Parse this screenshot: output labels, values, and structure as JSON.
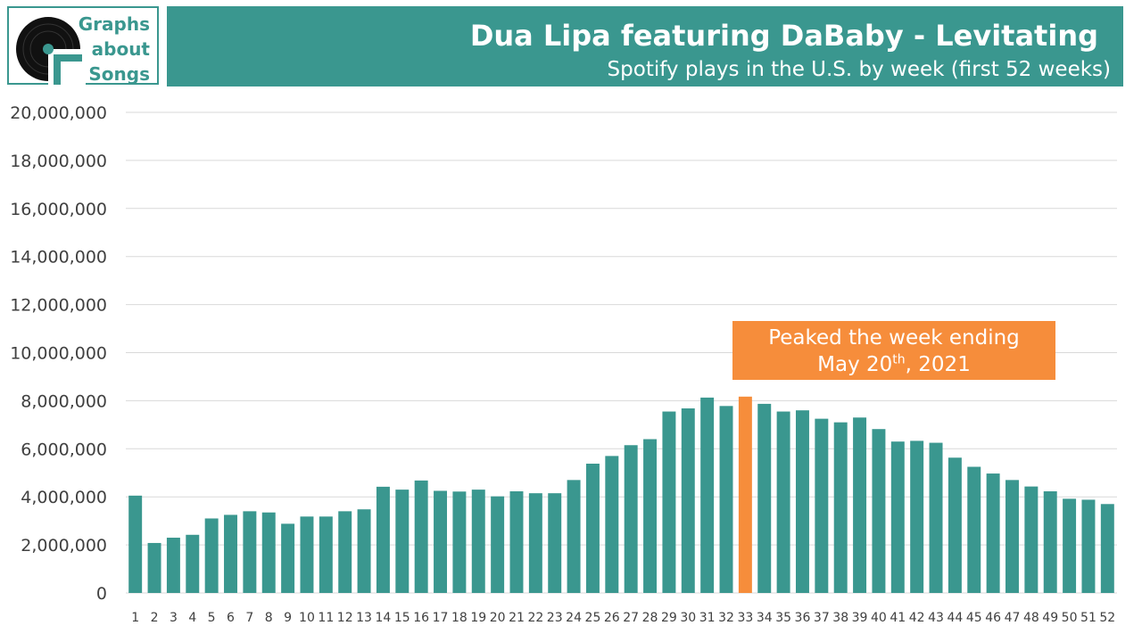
{
  "logo": {
    "line1": "Graphs",
    "line2": "about",
    "line3": "Songs",
    "disc_icon": "vinyl-record-icon"
  },
  "header": {
    "title": "Dua Lipa featuring DaBaby - Levitating",
    "subtitle": "Spotify plays in the U.S. by week (first 52 weeks)"
  },
  "annotation": {
    "line1": "Peaked the week ending",
    "month_day": "May 20",
    "ordinal": "th",
    "year": ", 2021"
  },
  "colors": {
    "bar": "#3a978f",
    "peak": "#f68d3b",
    "grid": "#d9d9d9",
    "axis_text": "#404040"
  },
  "chart_data": {
    "type": "bar",
    "title": "Dua Lipa featuring DaBaby - Levitating",
    "subtitle": "Spotify plays in the U.S. by week (first 52 weeks)",
    "xlabel": "",
    "ylabel": "",
    "ylim": [
      0,
      20000000
    ],
    "yticks": [
      "0",
      "2,000,000",
      "4,000,000",
      "6,000,000",
      "8,000,000",
      "10,000,000",
      "12,000,000",
      "14,000,000",
      "16,000,000",
      "18,000,000",
      "20,000,000"
    ],
    "categories": [
      "1",
      "2",
      "3",
      "4",
      "5",
      "6",
      "7",
      "8",
      "9",
      "10",
      "11",
      "12",
      "13",
      "14",
      "15",
      "16",
      "17",
      "18",
      "19",
      "20",
      "21",
      "22",
      "23",
      "24",
      "25",
      "26",
      "27",
      "28",
      "29",
      "30",
      "31",
      "32",
      "33",
      "34",
      "35",
      "36",
      "37",
      "38",
      "39",
      "40",
      "41",
      "42",
      "43",
      "44",
      "45",
      "46",
      "47",
      "48",
      "49",
      "50",
      "51",
      "52"
    ],
    "values": [
      4050000,
      2080000,
      2300000,
      2420000,
      3100000,
      3250000,
      3400000,
      3350000,
      2880000,
      3180000,
      3180000,
      3400000,
      3480000,
      4420000,
      4300000,
      4680000,
      4250000,
      4220000,
      4300000,
      4020000,
      4230000,
      4150000,
      4150000,
      4700000,
      5380000,
      5700000,
      6150000,
      6400000,
      7550000,
      7680000,
      8130000,
      7780000,
      8170000,
      7870000,
      7550000,
      7600000,
      7250000,
      7100000,
      7300000,
      6820000,
      6300000,
      6330000,
      6250000,
      5630000,
      5250000,
      4970000,
      4700000,
      4430000,
      4230000,
      3920000,
      3880000,
      3700000
    ],
    "peak_index": 32,
    "grid": true
  }
}
